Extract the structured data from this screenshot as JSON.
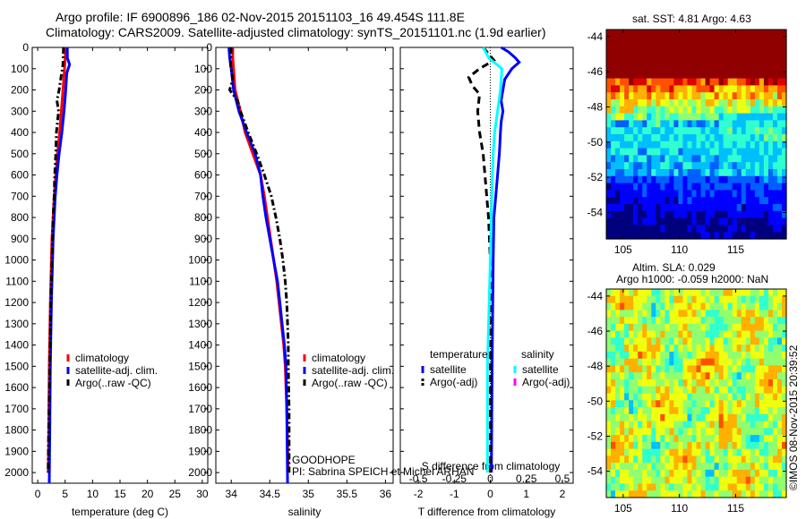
{
  "title_line1": "Argo profile: IF 6900896_186 02-Nov-2015 20151103_16 49.454S 111.8E",
  "title_line2": "Climatology: CARS2009. Satellite-adjusted climatology: synTS_20151101.nc (1.9d earlier)",
  "sst_title": "sat. SST: 4.81 Argo: 4.63",
  "sla_title1": "Altim. SLA: 0.029",
  "sla_title2": "Argo h1000: -0.059 h2000: NaN",
  "credit": "©IMOS 08-Nov-2015 20:39:52",
  "goodhope_text": "GOODHOPE",
  "pi_text": "PI: Sabrina SPEICH et Michel ARHAN",
  "depth_ticks": [
    "0",
    "100",
    "200",
    "300",
    "400",
    "500",
    "600",
    "700",
    "800",
    "900",
    "1000",
    "1100",
    "1200",
    "1300",
    "1400",
    "1500",
    "1600",
    "1700",
    "1800",
    "1900",
    "2000"
  ],
  "colors": {
    "climatology": "#ff0000",
    "satellite": "#0000ff",
    "argo": "#000000",
    "sat_salinity": "#00ffff",
    "argo_salinity": "#ff00ff"
  },
  "chart_data": [
    {
      "type": "line",
      "xlabel": "temperature (deg C)",
      "ylabel": "",
      "xlim": [
        -1,
        31
      ],
      "ylim": [
        2050,
        0
      ],
      "x_ticks": [
        "0",
        "5",
        "10",
        "15",
        "20",
        "25",
        "30"
      ],
      "legend": [
        "climatology",
        "satellite-adj. clim.",
        "Argo(..raw -QC)"
      ],
      "legend_position": "bottom-right",
      "series": [
        {
          "name": "climatology",
          "depth": [
            0,
            50,
            100,
            200,
            300,
            400,
            500,
            600,
            700,
            800,
            900,
            1000,
            1200,
            1500,
            1800,
            2000
          ],
          "values": [
            5.1,
            5.0,
            4.9,
            4.6,
            4.3,
            4.0,
            3.6,
            3.3,
            3.0,
            2.8,
            2.6,
            2.5,
            2.3,
            2.1,
            2.0,
            1.9
          ]
        },
        {
          "name": "satellite-adj. clim.",
          "depth": [
            0,
            50,
            80,
            120,
            200,
            300,
            400,
            500,
            600,
            700,
            800,
            900,
            1000,
            1200,
            1500,
            1800,
            2050
          ],
          "values": [
            5.4,
            5.4,
            5.8,
            5.3,
            5.1,
            4.8,
            4.4,
            3.9,
            3.5,
            3.2,
            3.0,
            2.8,
            2.7,
            2.5,
            2.3,
            2.2,
            2.1
          ]
        },
        {
          "name": "Argo(..raw -QC)",
          "depth": [
            0,
            80,
            150,
            200,
            250,
            300,
            400,
            500,
            600,
            700,
            800,
            900,
            1000,
            1200,
            1500,
            1800,
            2000
          ],
          "values": [
            4.7,
            4.6,
            4.2,
            3.9,
            3.5,
            3.8,
            3.4,
            3.3,
            3.1,
            3.0,
            2.8,
            2.7,
            2.6,
            2.4,
            2.2,
            2.0,
            1.9
          ]
        }
      ]
    },
    {
      "type": "line",
      "xlabel": "salinity",
      "xlim": [
        33.8,
        36.1
      ],
      "ylim": [
        2050,
        0
      ],
      "x_ticks": [
        "34",
        "34.5",
        "35",
        "35.5",
        "36"
      ],
      "legend": [
        "climatology",
        "satellite-adj. clim.",
        "Argo(..raw -QC)"
      ],
      "legend_position": "bottom-right",
      "series": [
        {
          "name": "climatology",
          "depth": [
            0,
            50,
            100,
            200,
            300,
            400,
            500,
            600,
            700,
            800,
            900,
            1000,
            1100,
            1200,
            1300,
            1400,
            1500,
            1700,
            2000
          ],
          "values": [
            34.02,
            34.02,
            34.03,
            34.05,
            34.12,
            34.18,
            34.28,
            34.38,
            34.43,
            34.47,
            34.51,
            34.55,
            34.59,
            34.62,
            34.65,
            34.68,
            34.7,
            34.72,
            34.74
          ]
        },
        {
          "name": "satellite-adj. clim.",
          "depth": [
            0,
            50,
            100,
            200,
            300,
            400,
            500,
            600,
            700,
            800,
            900,
            1000,
            1100,
            1200,
            1300,
            1400,
            1500,
            1700,
            2050
          ],
          "values": [
            33.97,
            33.98,
            34.0,
            34.03,
            34.1,
            34.2,
            34.31,
            34.38,
            34.41,
            34.45,
            34.5,
            34.55,
            34.6,
            34.63,
            34.66,
            34.69,
            34.71,
            34.72,
            34.73
          ]
        },
        {
          "name": "Argo(..raw -QC)",
          "depth": [
            0,
            80,
            150,
            200,
            250,
            300,
            400,
            500,
            600,
            700,
            800,
            900,
            1000,
            1100,
            1200,
            1300,
            1400,
            1500,
            1700,
            1900,
            2000
          ],
          "values": [
            34.0,
            33.99,
            34.02,
            33.98,
            34.08,
            34.12,
            34.22,
            34.33,
            34.43,
            34.52,
            34.58,
            34.63,
            34.67,
            34.7,
            34.72,
            34.73,
            34.74,
            34.74,
            34.75,
            34.75,
            34.75
          ]
        }
      ]
    },
    {
      "type": "line",
      "xlabel": "T difference from climatology",
      "x2label": "S difference from climatology",
      "xlim": [
        -2.5,
        2.3
      ],
      "ylim": [
        2050,
        0
      ],
      "x_ticks": [
        "-2",
        "-1",
        "0",
        "1",
        "2"
      ],
      "x2_ticks": [
        "-0.5",
        "-0.25",
        "0",
        "0.25",
        "0.5"
      ],
      "legend": [
        "temperature",
        "satellite",
        "Argo(-adj)",
        "salinity",
        "satellite",
        "Argo(-adj)"
      ],
      "legend_position": "bottom",
      "series": [
        {
          "name": "temperature satellite",
          "depth": [
            0,
            20,
            50,
            70,
            100,
            150,
            200,
            250,
            300,
            350,
            400,
            500,
            600,
            700,
            800,
            1000,
            1500,
            2000
          ],
          "values": [
            0.3,
            0.5,
            0.7,
            0.8,
            0.6,
            0.4,
            0.35,
            0.3,
            0.35,
            0.3,
            0.28,
            0.25,
            0.2,
            0.15,
            0.1,
            0.08,
            0.05,
            0.03
          ]
        },
        {
          "name": "temperature Argo(-adj)",
          "depth": [
            0,
            60,
            100,
            140,
            180,
            220,
            300,
            400,
            500,
            600,
            700,
            800,
            1000,
            1500,
            2000
          ],
          "values": [
            -0.2,
            0.1,
            -0.3,
            -0.6,
            -0.5,
            -0.3,
            -0.35,
            -0.3,
            -0.2,
            -0.15,
            -0.1,
            -0.05,
            0.0,
            0.0,
            0.0
          ]
        },
        {
          "name": "salinity satellite",
          "depth": [
            0,
            50,
            100,
            200,
            300,
            400,
            500,
            700,
            1000,
            1500,
            2000
          ],
          "values": [
            -0.05,
            -0.01,
            0.08,
            0.07,
            0.05,
            0.03,
            0.02,
            0.01,
            0.0,
            -0.02,
            -0.02
          ]
        }
      ]
    },
    {
      "type": "heatmap",
      "title": "sat. SST: 4.81 Argo: 4.63",
      "xlim": [
        103.5,
        119.5
      ],
      "ylim": [
        -55.5,
        -43.6
      ],
      "x_ticks": [
        "105",
        "110",
        "115"
      ],
      "y_ticks": [
        "-44",
        "-46",
        "-48",
        "-50",
        "-52",
        "-54"
      ]
    },
    {
      "type": "heatmap",
      "title": "Altim. SLA: 0.029 / Argo h1000: -0.059 h2000: NaN",
      "xlim": [
        103.5,
        119.5
      ],
      "ylim": [
        -55.5,
        -43.6
      ],
      "x_ticks": [
        "105",
        "110",
        "115"
      ],
      "y_ticks": [
        "-44",
        "-46",
        "-48",
        "-50",
        "-52",
        "-54"
      ]
    }
  ]
}
